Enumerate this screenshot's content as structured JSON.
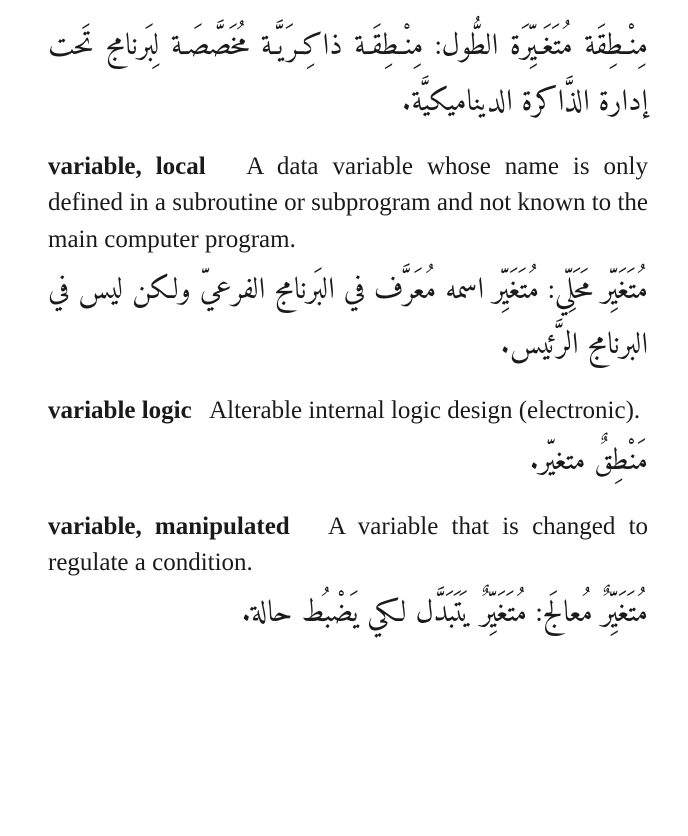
{
  "entries": [
    {
      "arabic": "مِنْـطِقَة مُتَغَـيِّرَة الطُّول: مِنْـطِقَـة ذاكِـرَيَّـة مُخَصَّصَـة لِبَرنامج تَحت إدارة الذَّاكرة الديناميكيَّة."
    },
    {
      "term": "variable, local",
      "definition": "A data variable whose name is only defined in a subroutine or subprogram and not known to the main computer program.",
      "arabic": "مُتَغَيِّر مَحَلِّي: مُتَغَيِّر اسمه مُعَرَّف في البَرنامج الفرعيّ ولكن ليس في البرنامج الرَّئيس."
    },
    {
      "term": "variable logic",
      "definition": "Alterable internal logic design (electronic).",
      "arabic": "مَنْطِقٌ متغيّر."
    },
    {
      "term": "variable, manipulated",
      "definition": "A variable that is changed to regulate a condition.",
      "arabic": "مُتَغَيِّرٌ مُعالَج: مُتَغَيِّرٌ يَتَبَدَّل لكي يَضْبُط حالة."
    }
  ]
}
